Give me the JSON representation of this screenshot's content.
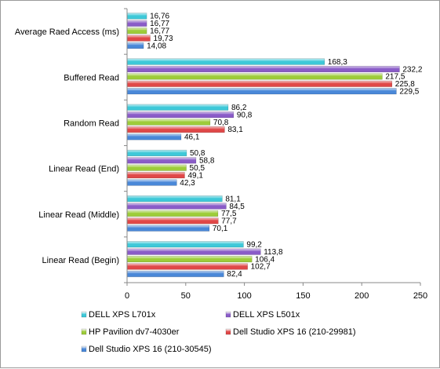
{
  "chart_data": {
    "type": "bar",
    "orientation": "horizontal",
    "categories": [
      "Average Raed Access (ms)",
      "Buffered Read",
      "Random Read",
      "Linear Read (End)",
      "Linear Read (Middle)",
      "Linear Read (Begin)"
    ],
    "series": [
      {
        "name": "DELL XPS L701x",
        "color": "#3ec8d8",
        "values": [
          16.76,
          168.3,
          86.2,
          50.8,
          81.1,
          99.2
        ],
        "labels": [
          "16,76",
          "168,3",
          "86,2",
          "50,8",
          "81,1",
          "99,2"
        ]
      },
      {
        "name": "DELL XPS L501x",
        "color": "#8a5cc8",
        "values": [
          16.77,
          232.2,
          90.8,
          58.8,
          84.5,
          113.8
        ],
        "labels": [
          "16,77",
          "232,2",
          "90,8",
          "58,8",
          "84,5",
          "113,8"
        ]
      },
      {
        "name": "HP Pavilion dv7-4030er",
        "color": "#9dcc3a",
        "values": [
          16.77,
          217.5,
          70.8,
          50.5,
          77.5,
          106.4
        ],
        "labels": [
          "16,77",
          "217,5",
          "70,8",
          "50,5",
          "77,5",
          "106,4"
        ]
      },
      {
        "name": "Dell Studio XPS 16 (210-29981)",
        "color": "#e04848",
        "values": [
          19.73,
          225.8,
          83.1,
          49.1,
          77.7,
          102.7
        ],
        "labels": [
          "19,73",
          "225,8",
          "83,1",
          "49,1",
          "77,7",
          "102,7"
        ]
      },
      {
        "name": "Dell Studio XPS 16 (210-30545)",
        "color": "#4a88d8",
        "values": [
          14.08,
          229.5,
          46.1,
          42.3,
          70.1,
          82.4
        ],
        "labels": [
          "14,08",
          "229,5",
          "46,1",
          "42,3",
          "70,1",
          "82,4"
        ]
      }
    ],
    "xlim": [
      0,
      250
    ],
    "xticks": [
      0,
      50,
      100,
      150,
      200,
      250
    ],
    "xtick_labels": [
      "0",
      "50",
      "100",
      "150",
      "200",
      "250"
    ],
    "grid": false,
    "legend_position": "bottom"
  }
}
